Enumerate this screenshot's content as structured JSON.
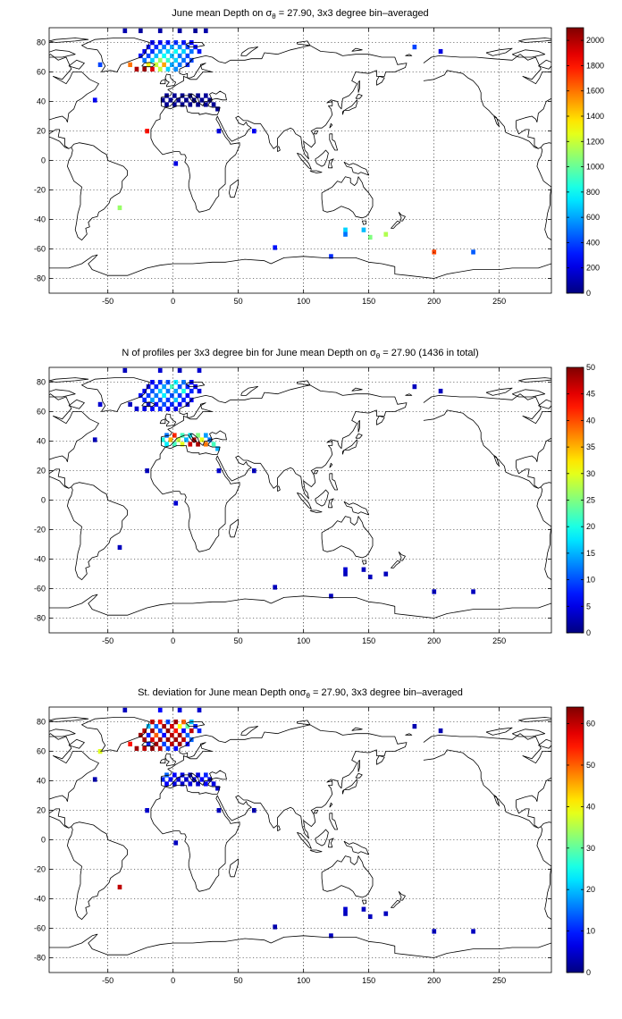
{
  "chart_data": [
    {
      "type": "heatmap",
      "title_prefix": "June mean Depth on ",
      "title_suffix": " = 27.90, 3x3 degree bin–averaged",
      "title_symbol": "σ",
      "title_subscript": "θ",
      "xlim": [
        -95,
        290
      ],
      "ylim": [
        -90,
        90
      ],
      "xticks": [
        -50,
        0,
        50,
        100,
        150,
        200,
        250
      ],
      "yticks": [
        -80,
        -60,
        -40,
        -20,
        0,
        20,
        40,
        60,
        80
      ],
      "grid": true,
      "colorbar_range": [
        0,
        2100
      ],
      "colorbar_ticks": [
        0,
        200,
        400,
        600,
        800,
        1000,
        1200,
        1400,
        1600,
        1800,
        2000
      ],
      "cells": [
        [
          -25,
          88,
          60
        ],
        [
          -10,
          88,
          80
        ],
        [
          5,
          88,
          70
        ],
        [
          17,
          88,
          50
        ],
        [
          25,
          88,
          90
        ],
        [
          -37,
          88,
          100
        ],
        [
          -16,
          80,
          200
        ],
        [
          -10,
          80,
          250
        ],
        [
          -4,
          80,
          300
        ],
        [
          2,
          80,
          350
        ],
        [
          8,
          80,
          300
        ],
        [
          14,
          80,
          250
        ],
        [
          -19,
          77,
          300
        ],
        [
          -13,
          77,
          350
        ],
        [
          -7,
          77,
          500
        ],
        [
          -1,
          77,
          600
        ],
        [
          5,
          77,
          550
        ],
        [
          11,
          77,
          400
        ],
        [
          17,
          77,
          300
        ],
        [
          -22,
          74,
          250
        ],
        [
          -16,
          74,
          350
        ],
        [
          -10,
          74,
          600
        ],
        [
          -4,
          74,
          700
        ],
        [
          2,
          74,
          800
        ],
        [
          8,
          74,
          700
        ],
        [
          14,
          74,
          500
        ],
        [
          20,
          74,
          300
        ],
        [
          -25,
          71,
          300
        ],
        [
          -19,
          71,
          400
        ],
        [
          -13,
          71,
          650
        ],
        [
          -7,
          71,
          800
        ],
        [
          -1,
          71,
          650
        ],
        [
          5,
          71,
          500
        ],
        [
          11,
          71,
          400
        ],
        [
          -22,
          68,
          500
        ],
        [
          -16,
          68,
          700
        ],
        [
          -10,
          68,
          1100
        ],
        [
          -4,
          68,
          900
        ],
        [
          2,
          68,
          700
        ],
        [
          8,
          68,
          500
        ],
        [
          14,
          68,
          400
        ],
        [
          -19,
          65,
          1300
        ],
        [
          -13,
          65,
          1200
        ],
        [
          -7,
          65,
          1500
        ],
        [
          -1,
          65,
          600
        ],
        [
          5,
          65,
          500
        ],
        [
          11,
          65,
          350
        ],
        [
          -28,
          62,
          2000
        ],
        [
          -22,
          62,
          2050
        ],
        [
          -16,
          62,
          1900
        ],
        [
          -10,
          62,
          1200
        ],
        [
          -4,
          62,
          700
        ],
        [
          2,
          62,
          550
        ],
        [
          -33,
          65,
          1600
        ],
        [
          -56,
          65,
          400
        ],
        [
          -60,
          41,
          250
        ],
        [
          185,
          77,
          400
        ],
        [
          205,
          74,
          200
        ],
        [
          -5,
          44,
          40
        ],
        [
          1,
          44,
          40
        ],
        [
          7,
          44,
          30
        ],
        [
          13,
          44,
          30
        ],
        [
          19,
          44,
          30
        ],
        [
          25,
          44,
          50
        ],
        [
          -8,
          41,
          40
        ],
        [
          -2,
          41,
          40
        ],
        [
          4,
          41,
          40
        ],
        [
          10,
          41,
          30
        ],
        [
          16,
          41,
          30
        ],
        [
          22,
          41,
          40
        ],
        [
          28,
          41,
          40
        ],
        [
          -5,
          38,
          40
        ],
        [
          1,
          38,
          40
        ],
        [
          7,
          38,
          30
        ],
        [
          13,
          38,
          30
        ],
        [
          19,
          38,
          30
        ],
        [
          25,
          38,
          40
        ],
        [
          31,
          38,
          40
        ],
        [
          34,
          35,
          40
        ],
        [
          -20,
          20,
          1800
        ],
        [
          35,
          20,
          200
        ],
        [
          62,
          20,
          250
        ],
        [
          2,
          -2,
          200
        ],
        [
          -41,
          -32,
          1100
        ],
        [
          132,
          -47,
          700
        ],
        [
          132,
          -50,
          500
        ],
        [
          146,
          -47,
          650
        ],
        [
          151,
          -52,
          1050
        ],
        [
          163,
          -50,
          1150
        ],
        [
          78,
          -59,
          300
        ],
        [
          121,
          -65,
          350
        ],
        [
          200,
          -62,
          1700
        ],
        [
          230,
          -62,
          450
        ]
      ]
    },
    {
      "type": "heatmap",
      "title": "N of profiles per 3x3 degree bin for June mean Depth on ",
      "title_suffix": " = 27.90 (1436 in total)",
      "title_symbol": "σ",
      "title_subscript": "θ",
      "xlim": [
        -95,
        290
      ],
      "ylim": [
        -90,
        90
      ],
      "xticks": [
        -50,
        0,
        50,
        100,
        150,
        200,
        250
      ],
      "yticks": [
        -80,
        -60,
        -40,
        -20,
        0,
        20,
        40,
        60,
        80
      ],
      "grid": true,
      "colorbar_range": [
        0,
        50
      ],
      "colorbar_ticks": [
        0,
        5,
        10,
        15,
        20,
        25,
        30,
        35,
        40,
        45,
        50
      ],
      "cells": [
        [
          -37,
          88,
          3
        ],
        [
          -10,
          88,
          4
        ],
        [
          5,
          88,
          3
        ],
        [
          20,
          88,
          4
        ],
        [
          -16,
          80,
          6
        ],
        [
          -10,
          80,
          8
        ],
        [
          -4,
          80,
          10
        ],
        [
          2,
          80,
          18
        ],
        [
          8,
          80,
          12
        ],
        [
          14,
          80,
          6
        ],
        [
          -19,
          77,
          5
        ],
        [
          -13,
          77,
          8
        ],
        [
          -7,
          77,
          14
        ],
        [
          -1,
          77,
          22
        ],
        [
          5,
          77,
          10
        ],
        [
          11,
          77,
          8
        ],
        [
          17,
          77,
          5
        ],
        [
          -22,
          74,
          6
        ],
        [
          -16,
          74,
          10
        ],
        [
          -10,
          74,
          16
        ],
        [
          -4,
          74,
          12
        ],
        [
          2,
          74,
          14
        ],
        [
          8,
          74,
          20
        ],
        [
          14,
          74,
          8
        ],
        [
          20,
          74,
          5
        ],
        [
          -25,
          71,
          7
        ],
        [
          -19,
          71,
          9
        ],
        [
          -13,
          71,
          12
        ],
        [
          -7,
          71,
          18
        ],
        [
          -1,
          71,
          10
        ],
        [
          5,
          71,
          9
        ],
        [
          11,
          71,
          6
        ],
        [
          -22,
          68,
          8
        ],
        [
          -16,
          68,
          14
        ],
        [
          -10,
          68,
          10
        ],
        [
          -4,
          68,
          9
        ],
        [
          2,
          68,
          16
        ],
        [
          8,
          68,
          8
        ],
        [
          14,
          68,
          6
        ],
        [
          -19,
          65,
          4
        ],
        [
          -13,
          65,
          6
        ],
        [
          -7,
          65,
          10
        ],
        [
          -1,
          65,
          8
        ],
        [
          5,
          65,
          6
        ],
        [
          11,
          65,
          4
        ],
        [
          -28,
          62,
          4
        ],
        [
          -22,
          62,
          5
        ],
        [
          -16,
          62,
          6
        ],
        [
          -10,
          62,
          8
        ],
        [
          -4,
          62,
          6
        ],
        [
          2,
          62,
          5
        ],
        [
          -33,
          65,
          3
        ],
        [
          -56,
          65,
          4
        ],
        [
          -60,
          41,
          3
        ],
        [
          185,
          77,
          3
        ],
        [
          205,
          74,
          3
        ],
        [
          -5,
          44,
          12
        ],
        [
          1,
          44,
          42
        ],
        [
          7,
          44,
          22
        ],
        [
          13,
          44,
          18
        ],
        [
          19,
          44,
          25
        ],
        [
          25,
          44,
          14
        ],
        [
          -8,
          41,
          20
        ],
        [
          -2,
          41,
          35
        ],
        [
          4,
          41,
          28
        ],
        [
          10,
          41,
          15
        ],
        [
          16,
          41,
          48
        ],
        [
          22,
          41,
          30
        ],
        [
          28,
          41,
          12
        ],
        [
          -5,
          38,
          18
        ],
        [
          1,
          38,
          22
        ],
        [
          7,
          38,
          30
        ],
        [
          13,
          38,
          46
        ],
        [
          19,
          38,
          48
        ],
        [
          25,
          38,
          38
        ],
        [
          31,
          38,
          22
        ],
        [
          34,
          35,
          15
        ],
        [
          -20,
          20,
          3
        ],
        [
          35,
          20,
          4
        ],
        [
          62,
          20,
          3
        ],
        [
          2,
          -2,
          4
        ],
        [
          -41,
          -32,
          3
        ],
        [
          132,
          -47,
          4
        ],
        [
          132,
          -50,
          3
        ],
        [
          146,
          -47,
          3
        ],
        [
          151,
          -52,
          3
        ],
        [
          163,
          -50,
          3
        ],
        [
          78,
          -59,
          3
        ],
        [
          121,
          -65,
          3
        ],
        [
          200,
          -62,
          3
        ],
        [
          230,
          -62,
          3
        ]
      ]
    },
    {
      "type": "heatmap",
      "title": "St. deviation for June mean Depth on",
      "title_suffix": " = 27.90, 3x3 degree bin–averaged",
      "title_symbol": "σ",
      "title_subscript": "θ",
      "xlim": [
        -95,
        290
      ],
      "ylim": [
        -90,
        90
      ],
      "xticks": [
        -50,
        0,
        50,
        100,
        150,
        200,
        250
      ],
      "yticks": [
        -80,
        -60,
        -40,
        -20,
        0,
        20,
        40,
        60,
        80
      ],
      "grid": true,
      "colorbar_range": [
        0,
        64
      ],
      "colorbar_ticks": [
        0,
        10,
        20,
        30,
        40,
        50,
        60
      ],
      "cells": [
        [
          -37,
          88,
          4
        ],
        [
          -10,
          88,
          8
        ],
        [
          5,
          88,
          6
        ],
        [
          20,
          88,
          5
        ],
        [
          -16,
          80,
          60
        ],
        [
          -10,
          80,
          55
        ],
        [
          -4,
          80,
          12
        ],
        [
          2,
          80,
          62
        ],
        [
          8,
          80,
          50
        ],
        [
          14,
          80,
          20
        ],
        [
          -19,
          77,
          20
        ],
        [
          -13,
          77,
          14
        ],
        [
          -7,
          77,
          62
        ],
        [
          -1,
          77,
          58
        ],
        [
          5,
          77,
          40
        ],
        [
          11,
          77,
          30
        ],
        [
          17,
          77,
          10
        ],
        [
          -22,
          74,
          60
        ],
        [
          -16,
          74,
          62
        ],
        [
          -10,
          74,
          12
        ],
        [
          -4,
          74,
          63
        ],
        [
          2,
          74,
          55
        ],
        [
          8,
          74,
          8
        ],
        [
          14,
          74,
          60
        ],
        [
          20,
          74,
          10
        ],
        [
          -25,
          71,
          62
        ],
        [
          -19,
          71,
          10
        ],
        [
          -13,
          71,
          50
        ],
        [
          -7,
          71,
          8
        ],
        [
          -1,
          71,
          60
        ],
        [
          5,
          71,
          62
        ],
        [
          11,
          71,
          14
        ],
        [
          -22,
          68,
          62
        ],
        [
          -16,
          68,
          58
        ],
        [
          -10,
          68,
          62
        ],
        [
          -4,
          68,
          63
        ],
        [
          2,
          68,
          62
        ],
        [
          8,
          68,
          60
        ],
        [
          14,
          68,
          14
        ],
        [
          -19,
          65,
          10
        ],
        [
          -13,
          65,
          62
        ],
        [
          -7,
          65,
          12
        ],
        [
          -1,
          65,
          60
        ],
        [
          5,
          65,
          62
        ],
        [
          11,
          65,
          8
        ],
        [
          -28,
          62,
          62
        ],
        [
          -22,
          62,
          60
        ],
        [
          -16,
          62,
          63
        ],
        [
          -10,
          62,
          60
        ],
        [
          -4,
          62,
          12
        ],
        [
          2,
          62,
          8
        ],
        [
          -33,
          65,
          55
        ],
        [
          -56,
          60,
          38
        ],
        [
          -60,
          41,
          3
        ],
        [
          185,
          77,
          3
        ],
        [
          205,
          74,
          3
        ],
        [
          -5,
          44,
          14
        ],
        [
          1,
          44,
          8
        ],
        [
          7,
          44,
          6
        ],
        [
          13,
          44,
          5
        ],
        [
          19,
          44,
          6
        ],
        [
          25,
          44,
          10
        ],
        [
          -8,
          41,
          10
        ],
        [
          -2,
          41,
          8
        ],
        [
          4,
          41,
          6
        ],
        [
          10,
          41,
          5
        ],
        [
          16,
          41,
          6
        ],
        [
          22,
          41,
          8
        ],
        [
          28,
          41,
          6
        ],
        [
          -5,
          38,
          8
        ],
        [
          1,
          38,
          6
        ],
        [
          7,
          38,
          5
        ],
        [
          13,
          38,
          6
        ],
        [
          19,
          38,
          5
        ],
        [
          25,
          38,
          8
        ],
        [
          31,
          38,
          6
        ],
        [
          34,
          35,
          5
        ],
        [
          -20,
          20,
          5
        ],
        [
          35,
          20,
          4
        ],
        [
          62,
          20,
          3
        ],
        [
          2,
          -2,
          4
        ],
        [
          -41,
          -32,
          60
        ],
        [
          132,
          -47,
          5
        ],
        [
          132,
          -50,
          4
        ],
        [
          146,
          -47,
          4
        ],
        [
          151,
          -52,
          4
        ],
        [
          163,
          -50,
          4
        ],
        [
          78,
          -59,
          3
        ],
        [
          121,
          -65,
          4
        ],
        [
          200,
          -62,
          4
        ],
        [
          230,
          -62,
          4
        ]
      ]
    }
  ]
}
